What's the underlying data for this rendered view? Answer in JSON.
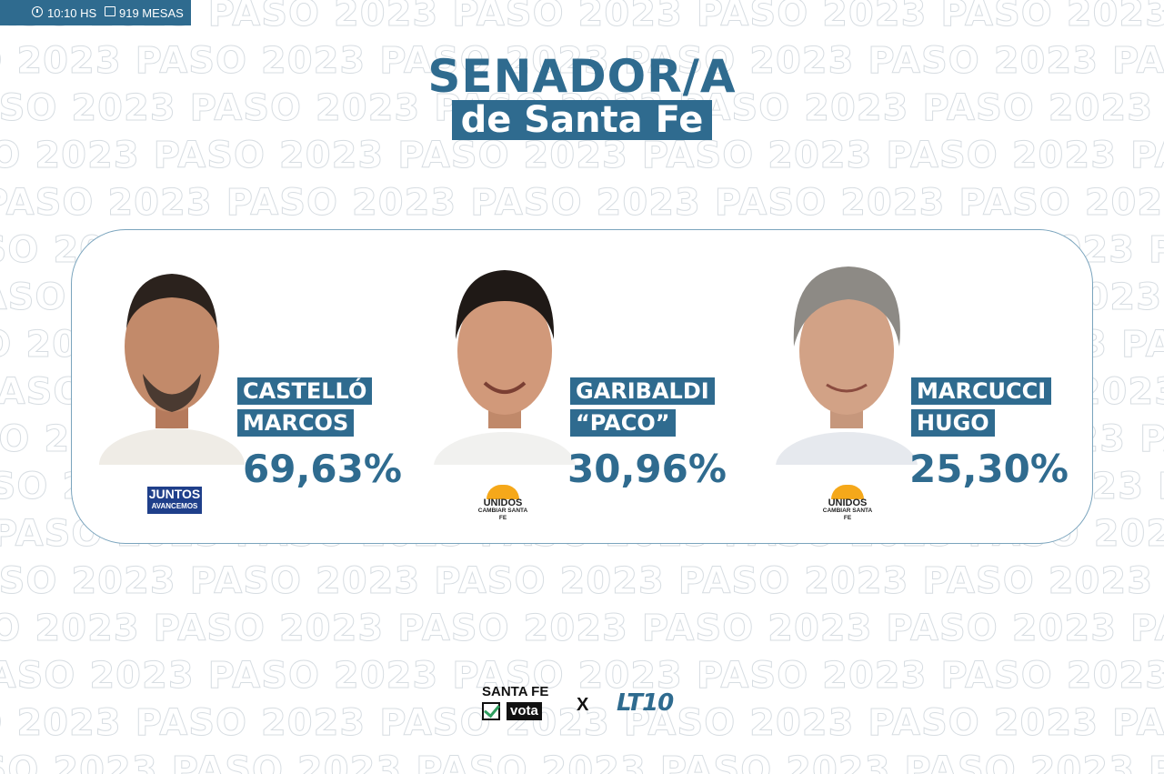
{
  "status_bar": {
    "time": "10:10 HS",
    "tables": "919 MESAS"
  },
  "watermark_text": "PASO 2023",
  "title": {
    "line1": "SENADOR/A",
    "line2": "de Santa Fe"
  },
  "candidates": [
    {
      "surname": "CASTELLÓ",
      "given": "MARCOS",
      "percent": "69,63%",
      "party": {
        "line1": "JUNTOS",
        "line2": "AVANCEMOS"
      }
    },
    {
      "surname": "GARIBALDI",
      "given": "“PACO”",
      "percent": "30,96%",
      "party": {
        "line1": "UNIDOS",
        "line2": "CAMBIAR SANTA FE"
      }
    },
    {
      "surname": "MARCUCCI",
      "given": "HUGO",
      "percent": "25,30%",
      "party": {
        "line1": "UNIDOS",
        "line2": "CAMBIAR SANTA FE"
      }
    }
  ],
  "footer": {
    "brand1_line1": "SANTA FE",
    "brand1_line2": "vota",
    "separator": "X",
    "brand2": "LT10"
  },
  "colors": {
    "accent": "#2f6b8f",
    "juntos": "#1f3f8a",
    "unidos_sun": "#f5a81a"
  }
}
